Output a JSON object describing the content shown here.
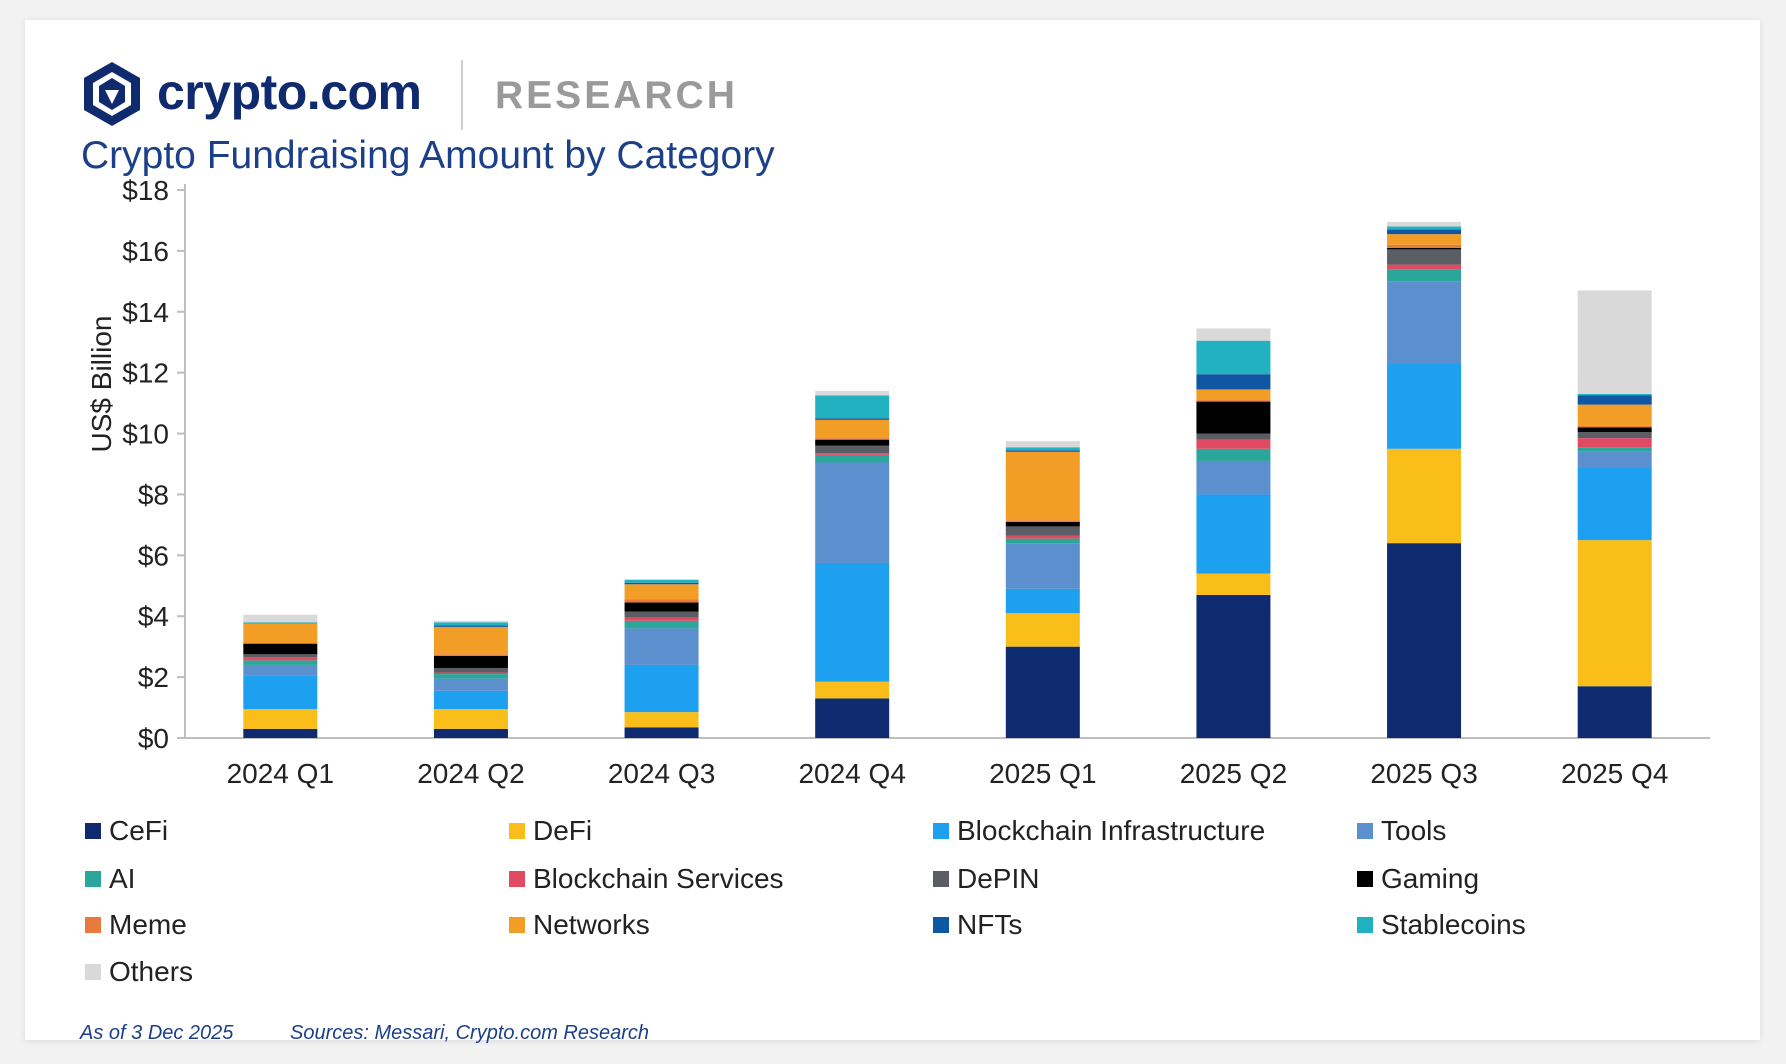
{
  "header": {
    "brand": "crypto.com",
    "brand_sub": "RESEARCH"
  },
  "chart_data": {
    "type": "bar",
    "stacked": true,
    "title": "Crypto Fundraising Amount by Category",
    "xlabel": "",
    "ylabel": "US$ Billion",
    "ylim": [
      0,
      18
    ],
    "yticks": [
      0,
      2,
      4,
      6,
      8,
      10,
      12,
      14,
      16,
      18
    ],
    "ytick_labels": [
      "$0",
      "$2",
      "$4",
      "$6",
      "$8",
      "$10",
      "$12",
      "$14",
      "$16",
      "$18"
    ],
    "categories": [
      "2024 Q1",
      "2024 Q2",
      "2024 Q3",
      "2024 Q4",
      "2025 Q1",
      "2025 Q2",
      "2025 Q3",
      "2025 Q4"
    ],
    "grid": false,
    "legend_position": "bottom",
    "series": [
      {
        "name": "CeFi",
        "color": "#0d2b6e",
        "values": [
          0.3,
          0.3,
          0.35,
          1.3,
          3.0,
          4.7,
          6.4,
          1.7
        ]
      },
      {
        "name": "DeFi",
        "color": "#f9be1a",
        "values": [
          0.65,
          0.65,
          0.5,
          0.55,
          1.1,
          0.7,
          3.1,
          4.8
        ]
      },
      {
        "name": "Blockchain Infrastructure",
        "color": "#1ea0f0",
        "values": [
          1.1,
          0.6,
          1.55,
          3.9,
          0.8,
          2.6,
          2.8,
          2.4
        ]
      },
      {
        "name": "Tools",
        "color": "#5b8fce",
        "values": [
          0.35,
          0.4,
          1.2,
          3.3,
          1.5,
          1.1,
          2.7,
          0.5
        ]
      },
      {
        "name": "AI",
        "color": "#2aa79a",
        "values": [
          0.15,
          0.15,
          0.25,
          0.25,
          0.15,
          0.4,
          0.4,
          0.15
        ]
      },
      {
        "name": "Blockchain Services",
        "color": "#e04a63",
        "values": [
          0.1,
          0.05,
          0.1,
          0.05,
          0.1,
          0.3,
          0.15,
          0.3
        ]
      },
      {
        "name": "DePIN",
        "color": "#5a5d63",
        "values": [
          0.1,
          0.15,
          0.2,
          0.25,
          0.3,
          0.2,
          0.5,
          0.2
        ]
      },
      {
        "name": "Gaming",
        "color": "#000000",
        "values": [
          0.35,
          0.4,
          0.3,
          0.2,
          0.15,
          1.05,
          0.05,
          0.15
        ]
      },
      {
        "name": "Meme",
        "color": "#e87a3e",
        "values": [
          0.0,
          0.05,
          0.1,
          0.05,
          0.05,
          0.05,
          0.1,
          0.05
        ]
      },
      {
        "name": "Networks",
        "color": "#f29d26",
        "values": [
          0.65,
          0.9,
          0.5,
          0.6,
          2.25,
          0.35,
          0.35,
          0.7
        ]
      },
      {
        "name": "NFTs",
        "color": "#0f56a3",
        "values": [
          0.0,
          0.05,
          0.05,
          0.05,
          0.05,
          0.5,
          0.15,
          0.3
        ]
      },
      {
        "name": "Stablecoins",
        "color": "#22b1c1",
        "values": [
          0.05,
          0.1,
          0.1,
          0.75,
          0.1,
          1.1,
          0.1,
          0.05
        ]
      },
      {
        "name": "Others",
        "color": "#d9d9d9",
        "values": [
          0.25,
          0.05,
          0.0,
          0.15,
          0.2,
          0.4,
          0.15,
          3.4
        ]
      }
    ]
  },
  "footer": {
    "as_of": "As of 3 Dec 2025",
    "sources": "Sources: Messari, Crypto.com Research"
  }
}
